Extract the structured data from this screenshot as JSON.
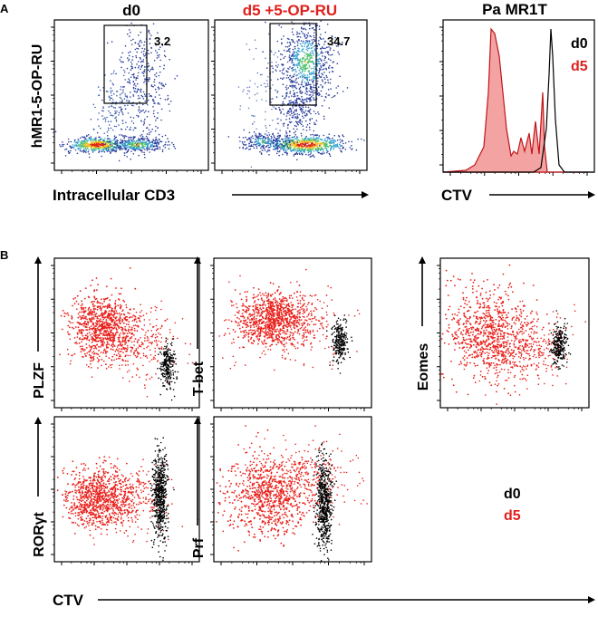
{
  "colors": {
    "d0": "#000000",
    "d5": "#e0201b",
    "hist_fill": "#f4a3a3",
    "hist_line": "#c0141a"
  },
  "chart_data": [
    {
      "panel": "A",
      "type": "scatter",
      "title": "d0",
      "xlabel": "Intracellular CD3",
      "ylabel": "hMR1-5-OP-RU",
      "scale": "log",
      "gate_value": "3.2"
    },
    {
      "panel": "A",
      "type": "scatter",
      "title": "d5 +5-OP-RU",
      "xlabel": "Intracellular CD3",
      "ylabel": "hMR1-5-OP-RU",
      "scale": "log",
      "gate_value": "34.7"
    },
    {
      "panel": "A",
      "type": "area",
      "title": "Pa MR1T",
      "xlabel": "CTV",
      "series": [
        {
          "name": "d0"
        },
        {
          "name": "d5"
        }
      ]
    },
    {
      "panel": "B",
      "type": "scatter",
      "xlabel": "CTV",
      "ylabel": "PLZF",
      "series": [
        {
          "name": "d0"
        },
        {
          "name": "d5"
        }
      ]
    },
    {
      "panel": "B",
      "type": "scatter",
      "xlabel": "CTV",
      "ylabel": "T-bet",
      "series": [
        {
          "name": "d0"
        },
        {
          "name": "d5"
        }
      ]
    },
    {
      "panel": "B",
      "type": "scatter",
      "xlabel": "CTV",
      "ylabel": "Eomes",
      "series": [
        {
          "name": "d0"
        },
        {
          "name": "d5"
        }
      ]
    },
    {
      "panel": "B",
      "type": "scatter",
      "xlabel": "CTV",
      "ylabel": "RORγt",
      "series": [
        {
          "name": "d0"
        },
        {
          "name": "d5"
        }
      ]
    },
    {
      "panel": "B",
      "type": "scatter",
      "xlabel": "CTV",
      "ylabel": "Prf",
      "series": [
        {
          "name": "d0"
        },
        {
          "name": "d5"
        }
      ]
    }
  ],
  "labels": {
    "panel_a": "A",
    "panel_b": "B",
    "legend_b_d0": "d0",
    "legend_b_d5": "d5",
    "ctv_b": "CTV"
  }
}
